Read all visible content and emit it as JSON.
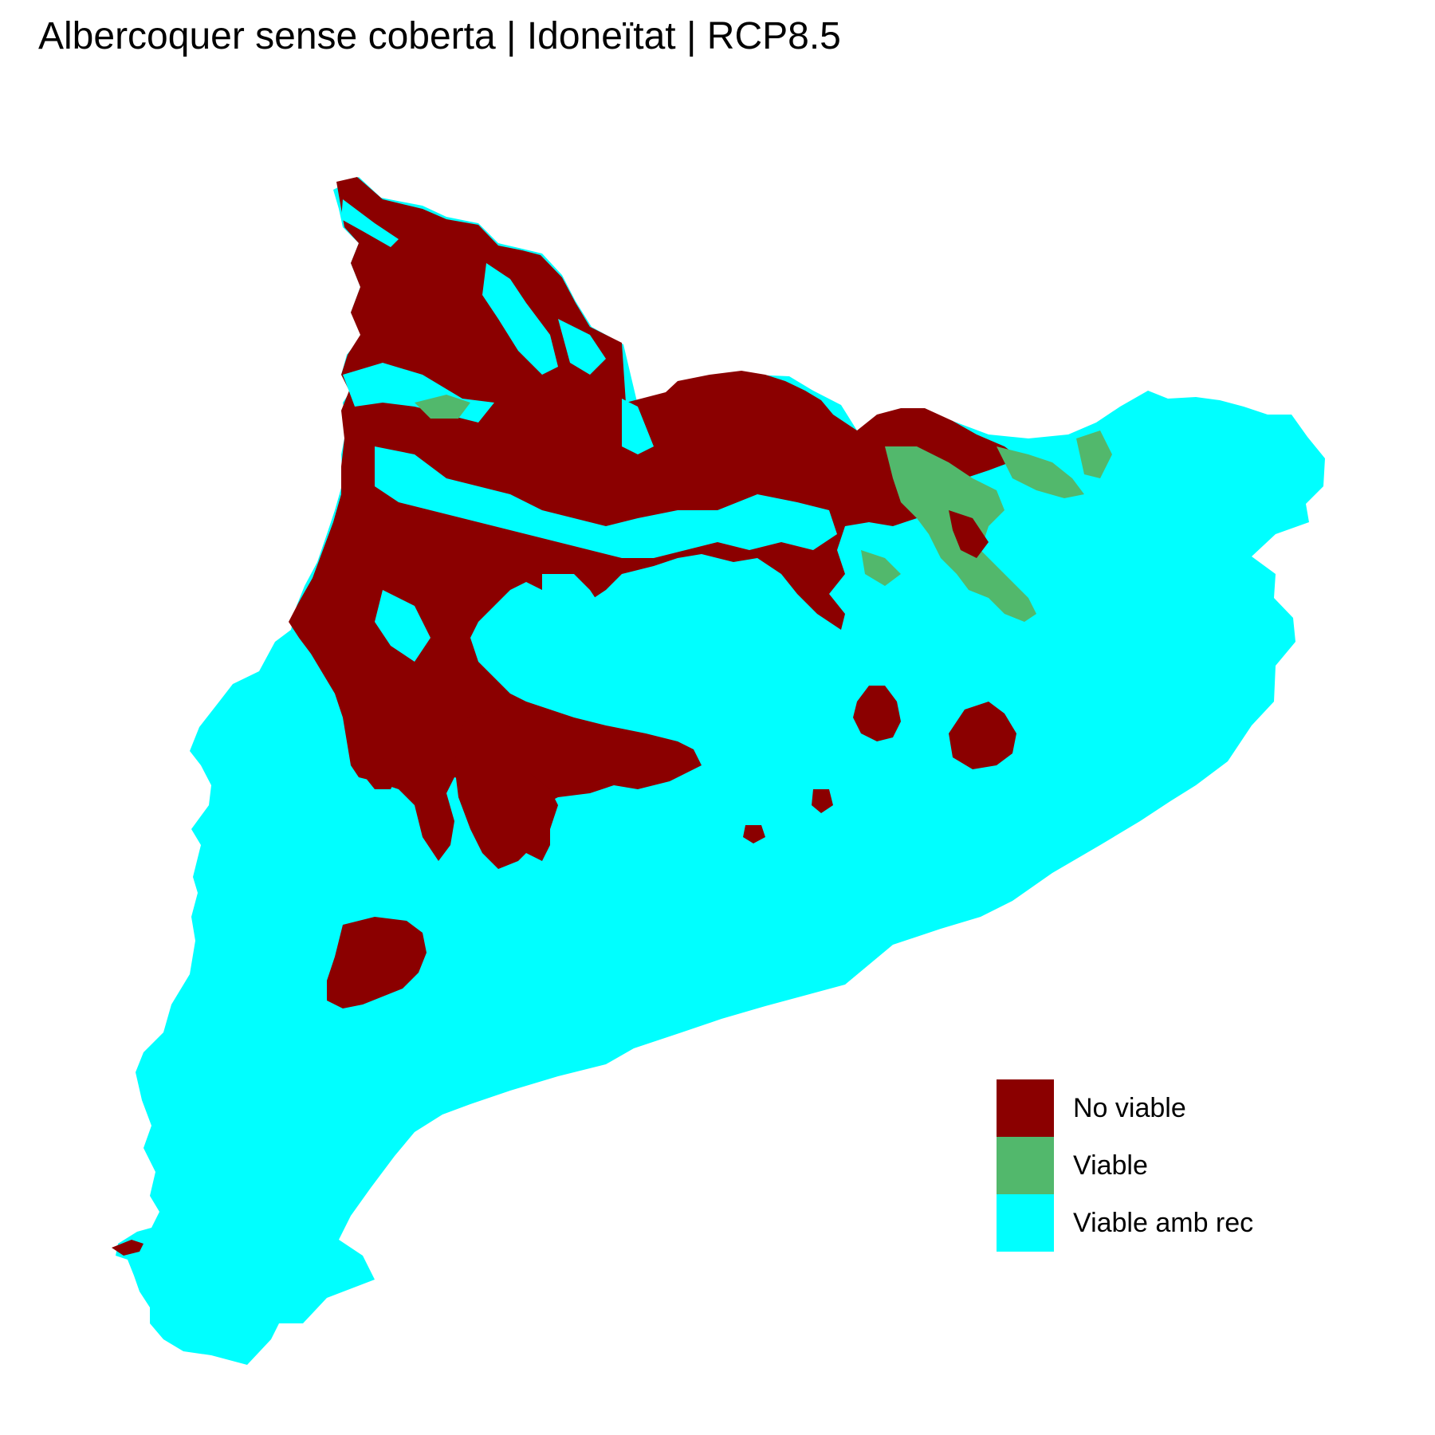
{
  "title": "Albercoquer sense coberta | Idoneïtat | RCP8.5",
  "map": {
    "region": "Catalunya",
    "classes": [
      {
        "key": "no_viable",
        "label": "No viable",
        "color": "#8B0000"
      },
      {
        "key": "viable",
        "label": "Viable",
        "color": "#52B86C"
      },
      {
        "key": "viable_amb_rec",
        "label": "Viable amb rec",
        "color": "#00FFFF"
      }
    ]
  },
  "legend": {
    "items": [
      {
        "label": "No viable",
        "color": "#8B0000"
      },
      {
        "label": "Viable",
        "color": "#52B86C"
      },
      {
        "label": "Viable amb rec",
        "color": "#00FFFF"
      }
    ]
  }
}
